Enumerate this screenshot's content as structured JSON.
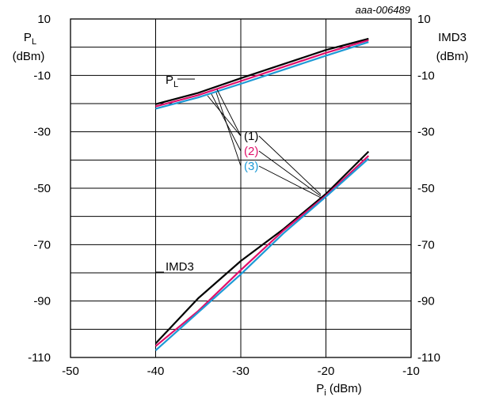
{
  "chart_data": {
    "type": "line",
    "reference": "aaa-006489",
    "xlabel": {
      "main": "P",
      "sub": "i",
      "unit": " (dBm)"
    },
    "ylabel_left": {
      "main": "P",
      "sub": "L",
      "unit": "(dBm)"
    },
    "ylabel_right": {
      "main": "IMD3",
      "unit": "(dBm)"
    },
    "xlim": [
      -50,
      -10
    ],
    "ylim": [
      -110,
      10
    ],
    "xticks": [
      -50,
      -40,
      -30,
      -20,
      -10
    ],
    "yticks": [
      10,
      -10,
      -30,
      -50,
      -70,
      -90,
      -110
    ],
    "xtick_labels": [
      "-50",
      "-40",
      "-30",
      "-20",
      "-10"
    ],
    "ytick_labels": [
      "10",
      "-10",
      "-30",
      "-50",
      "-70",
      "-90",
      "-110"
    ],
    "grid": true,
    "annotations": {
      "pl": {
        "main": "P",
        "sub": "L"
      },
      "imd3": "IMD3",
      "curve_labels": [
        "(1)",
        "(2)",
        "(3)"
      ]
    },
    "series": [
      {
        "label": "(1)",
        "group": "PL",
        "color": "#000000",
        "x": [
          -40,
          -35,
          -30,
          -25,
          -20,
          -15
        ],
        "y": [
          -20.2,
          -16.2,
          -11.0,
          -6.0,
          -1.0,
          3.0
        ]
      },
      {
        "label": "(2)",
        "group": "PL",
        "color": "#e0106a",
        "x": [
          -40,
          -35,
          -30,
          -25,
          -20,
          -15
        ],
        "y": [
          -21.0,
          -17.0,
          -12.0,
          -7.0,
          -2.0,
          2.5
        ]
      },
      {
        "label": "(3)",
        "group": "PL",
        "color": "#1e9ad6",
        "x": [
          -40,
          -35,
          -30,
          -25,
          -20,
          -15
        ],
        "y": [
          -21.8,
          -17.8,
          -13.0,
          -8.0,
          -3.0,
          1.8
        ]
      },
      {
        "label": "(1)",
        "group": "IMD3",
        "color": "#000000",
        "x": [
          -40,
          -35,
          -30,
          -25,
          -20,
          -15
        ],
        "y": [
          -105.0,
          -89.0,
          -75.8,
          -64.5,
          -52.0,
          -37.0
        ]
      },
      {
        "label": "(2)",
        "group": "IMD3",
        "color": "#e0106a",
        "x": [
          -40,
          -35,
          -30,
          -25,
          -20,
          -15
        ],
        "y": [
          -106.0,
          -93.5,
          -79.0,
          -65.0,
          -52.6,
          -38.5
        ]
      },
      {
        "label": "(3)",
        "group": "IMD3",
        "color": "#1e9ad6",
        "x": [
          -40,
          -35,
          -30,
          -25,
          -20,
          -15
        ],
        "y": [
          -107.5,
          -94.0,
          -80.5,
          -66.0,
          -53.0,
          -39.5
        ]
      }
    ]
  }
}
